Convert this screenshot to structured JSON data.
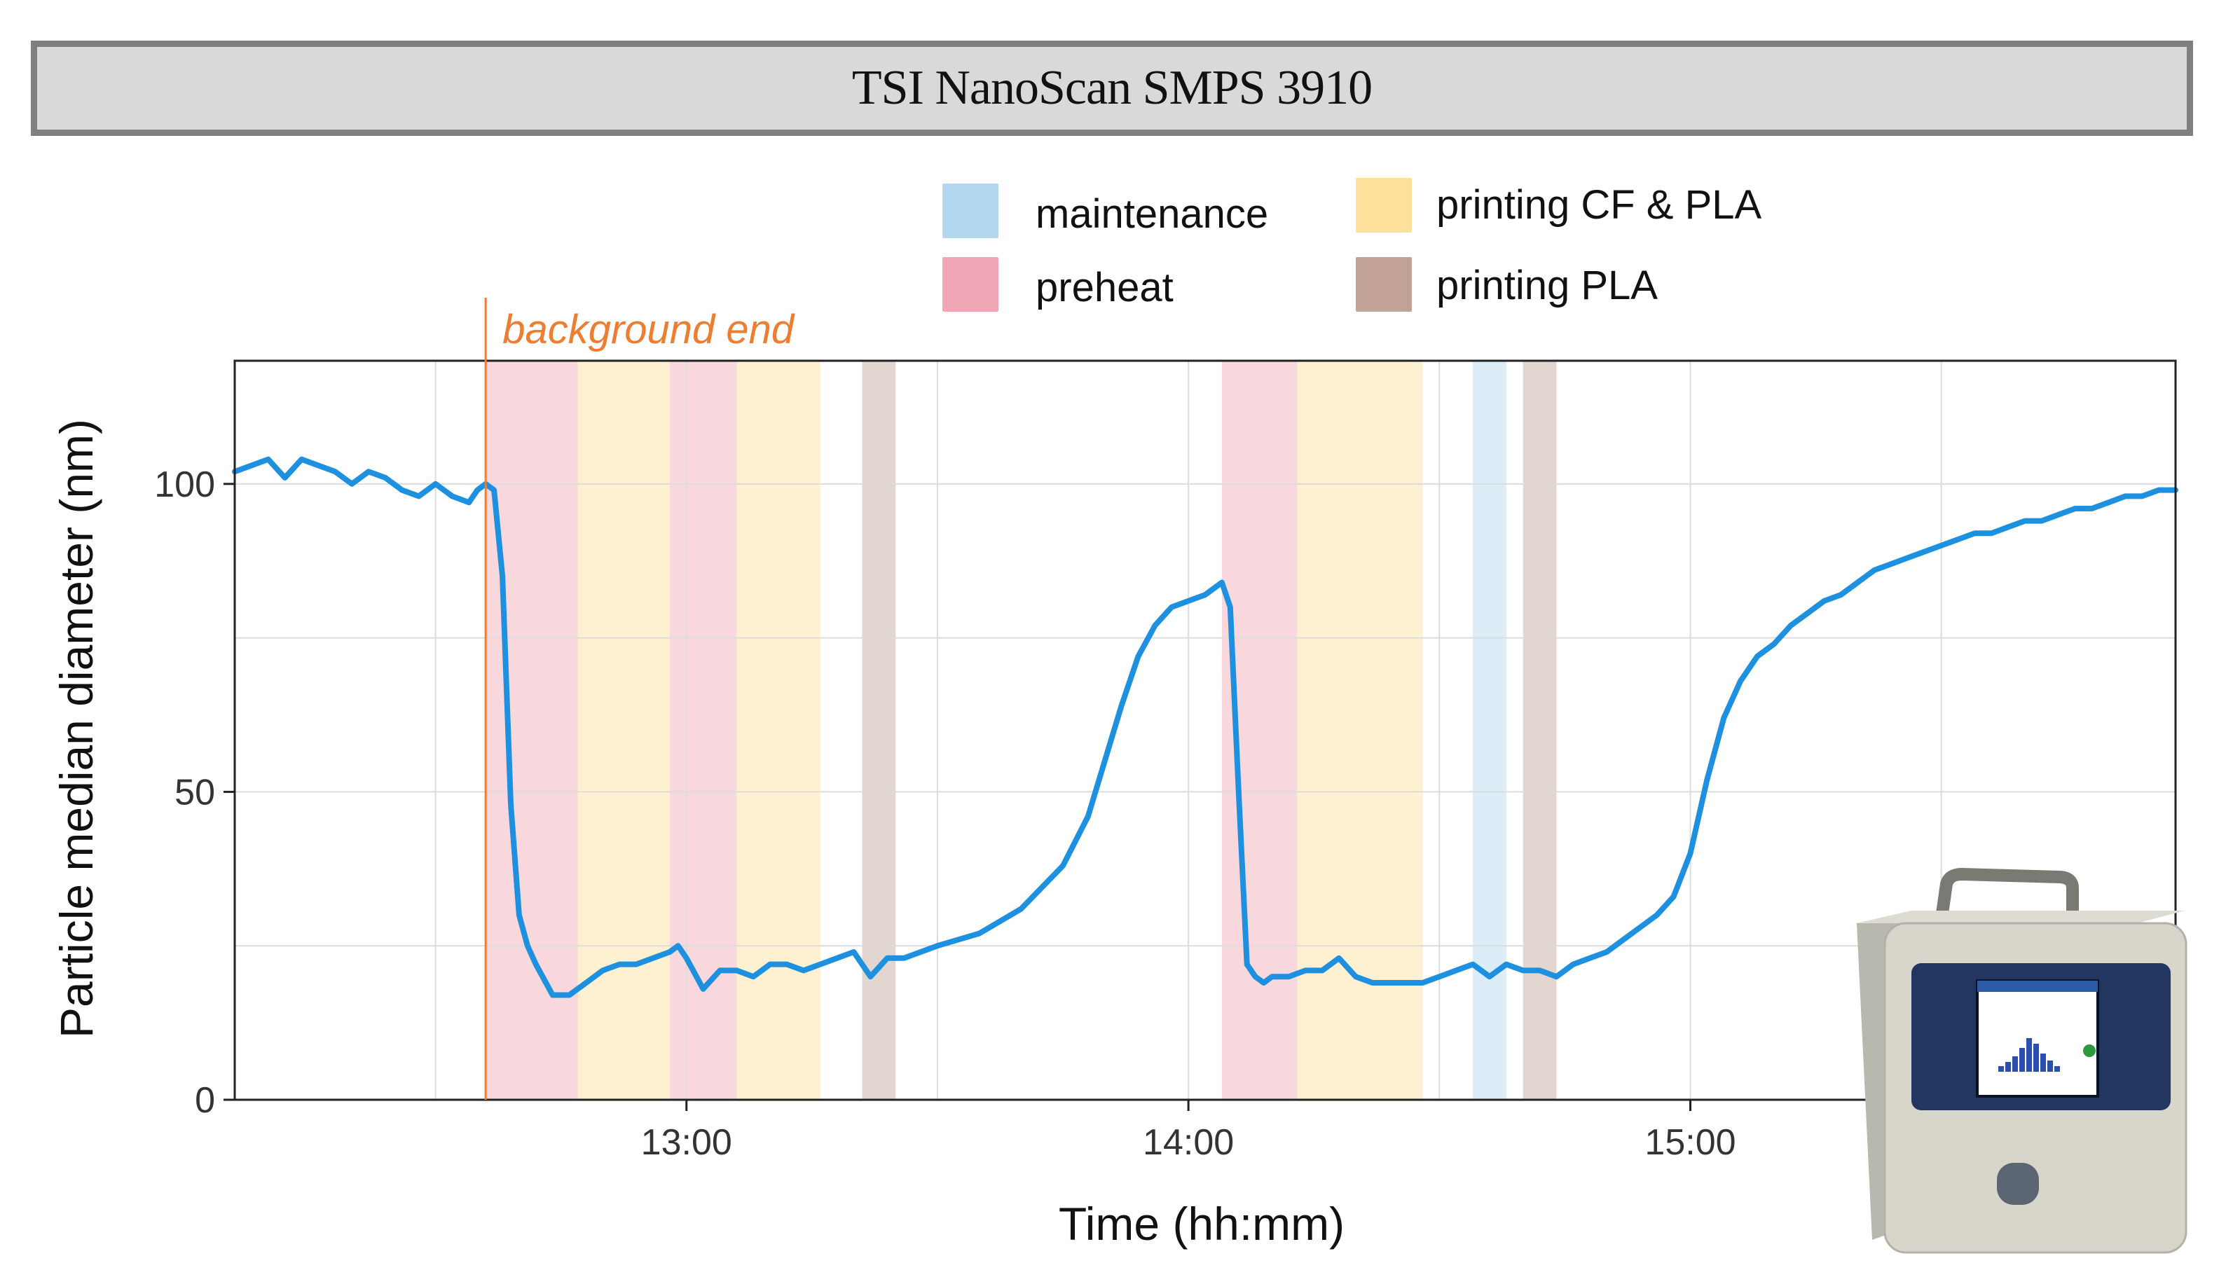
{
  "header": {
    "title": "TSI NanoScan SMPS 3910"
  },
  "legend": [
    {
      "label": "maintenance",
      "color": "#b3d7ef"
    },
    {
      "label": "preheat",
      "color": "#f0a6b4"
    },
    {
      "label": "printing CF & PLA",
      "color": "#fde19a"
    },
    {
      "label": "printing PLA",
      "color": "#c2a296"
    }
  ],
  "annotation": {
    "label": "background end",
    "time": "12:36",
    "color": "#ed7d31"
  },
  "device": {
    "icon": "nanoscan-device-photo"
  },
  "chart_data": {
    "type": "line",
    "xlabel": "Time (hh:mm)",
    "ylabel": "Particle median diameter (nm)",
    "xlim": [
      "12:06",
      "15:58"
    ],
    "ylim": [
      0,
      120
    ],
    "xticks": [
      "13:00",
      "14:00",
      "15:00"
    ],
    "yticks": [
      0,
      50,
      100
    ],
    "grid": true,
    "line_color": "#1e90e0",
    "bands": [
      {
        "category": "preheat",
        "start": "12:36",
        "end": "12:47"
      },
      {
        "category": "printing CF & PLA",
        "start": "12:47",
        "end": "12:58"
      },
      {
        "category": "preheat",
        "start": "12:58",
        "end": "13:06"
      },
      {
        "category": "printing CF & PLA",
        "start": "13:06",
        "end": "13:16"
      },
      {
        "category": "printing PLA",
        "start": "13:21",
        "end": "13:25"
      },
      {
        "category": "preheat",
        "start": "14:04",
        "end": "14:13"
      },
      {
        "category": "printing CF & PLA",
        "start": "14:13",
        "end": "14:28"
      },
      {
        "category": "maintenance",
        "start": "14:34",
        "end": "14:38"
      },
      {
        "category": "printing PLA",
        "start": "14:40",
        "end": "14:44"
      }
    ],
    "series": [
      {
        "x": [
          "12:06",
          "12:08",
          "12:10",
          "12:12",
          "12:14",
          "12:16",
          "12:18",
          "12:20",
          "12:22",
          "12:24",
          "12:26",
          "12:28",
          "12:30",
          "12:32",
          "12:34",
          "12:35",
          "12:36",
          "12:37",
          "12:38",
          "12:39",
          "12:40",
          "12:41",
          "12:42",
          "12:44",
          "12:46",
          "12:48",
          "12:50",
          "12:52",
          "12:54",
          "12:56",
          "12:58",
          "12:59",
          "13:00",
          "13:02",
          "13:04",
          "13:06",
          "13:08",
          "13:10",
          "13:12",
          "13:14",
          "13:16",
          "13:18",
          "13:20",
          "13:22",
          "13:24",
          "13:26",
          "13:30",
          "13:35",
          "13:40",
          "13:45",
          "13:48",
          "13:50",
          "13:52",
          "13:54",
          "13:56",
          "13:58",
          "14:00",
          "14:02",
          "14:04",
          "14:05",
          "14:06",
          "14:07",
          "14:08",
          "14:09",
          "14:10",
          "14:12",
          "14:14",
          "14:16",
          "14:18",
          "14:20",
          "14:22",
          "14:24",
          "14:26",
          "14:28",
          "14:30",
          "14:32",
          "14:34",
          "14:36",
          "14:38",
          "14:40",
          "14:42",
          "14:44",
          "14:46",
          "14:48",
          "14:50",
          "14:52",
          "14:54",
          "14:56",
          "14:58",
          "15:00",
          "15:02",
          "15:04",
          "15:06",
          "15:08",
          "15:10",
          "15:12",
          "15:14",
          "15:16",
          "15:18",
          "15:20",
          "15:22",
          "15:24",
          "15:26",
          "15:28",
          "15:30",
          "15:32",
          "15:34",
          "15:36",
          "15:38",
          "15:40",
          "15:42",
          "15:44",
          "15:46",
          "15:48",
          "15:50",
          "15:52",
          "15:54",
          "15:56",
          "15:58"
        ],
        "y": [
          102,
          103,
          104,
          101,
          104,
          103,
          102,
          100,
          102,
          101,
          99,
          98,
          100,
          98,
          97,
          99,
          100,
          99,
          85,
          48,
          30,
          25,
          22,
          17,
          17,
          19,
          21,
          22,
          22,
          23,
          24,
          25,
          23,
          18,
          21,
          21,
          20,
          22,
          22,
          21,
          22,
          23,
          24,
          20,
          23,
          23,
          25,
          27,
          31,
          38,
          46,
          55,
          64,
          72,
          77,
          80,
          81,
          82,
          84,
          80,
          50,
          22,
          20,
          19,
          20,
          20,
          21,
          21,
          23,
          20,
          19,
          19,
          19,
          19,
          20,
          21,
          22,
          20,
          22,
          21,
          21,
          20,
          22,
          23,
          24,
          26,
          28,
          30,
          33,
          40,
          52,
          62,
          68,
          72,
          74,
          77,
          79,
          81,
          82,
          84,
          86,
          87,
          88,
          89,
          90,
          91,
          92,
          92,
          93,
          94,
          94,
          95,
          96,
          96,
          97,
          98,
          98,
          99,
          99
        ]
      }
    ]
  }
}
